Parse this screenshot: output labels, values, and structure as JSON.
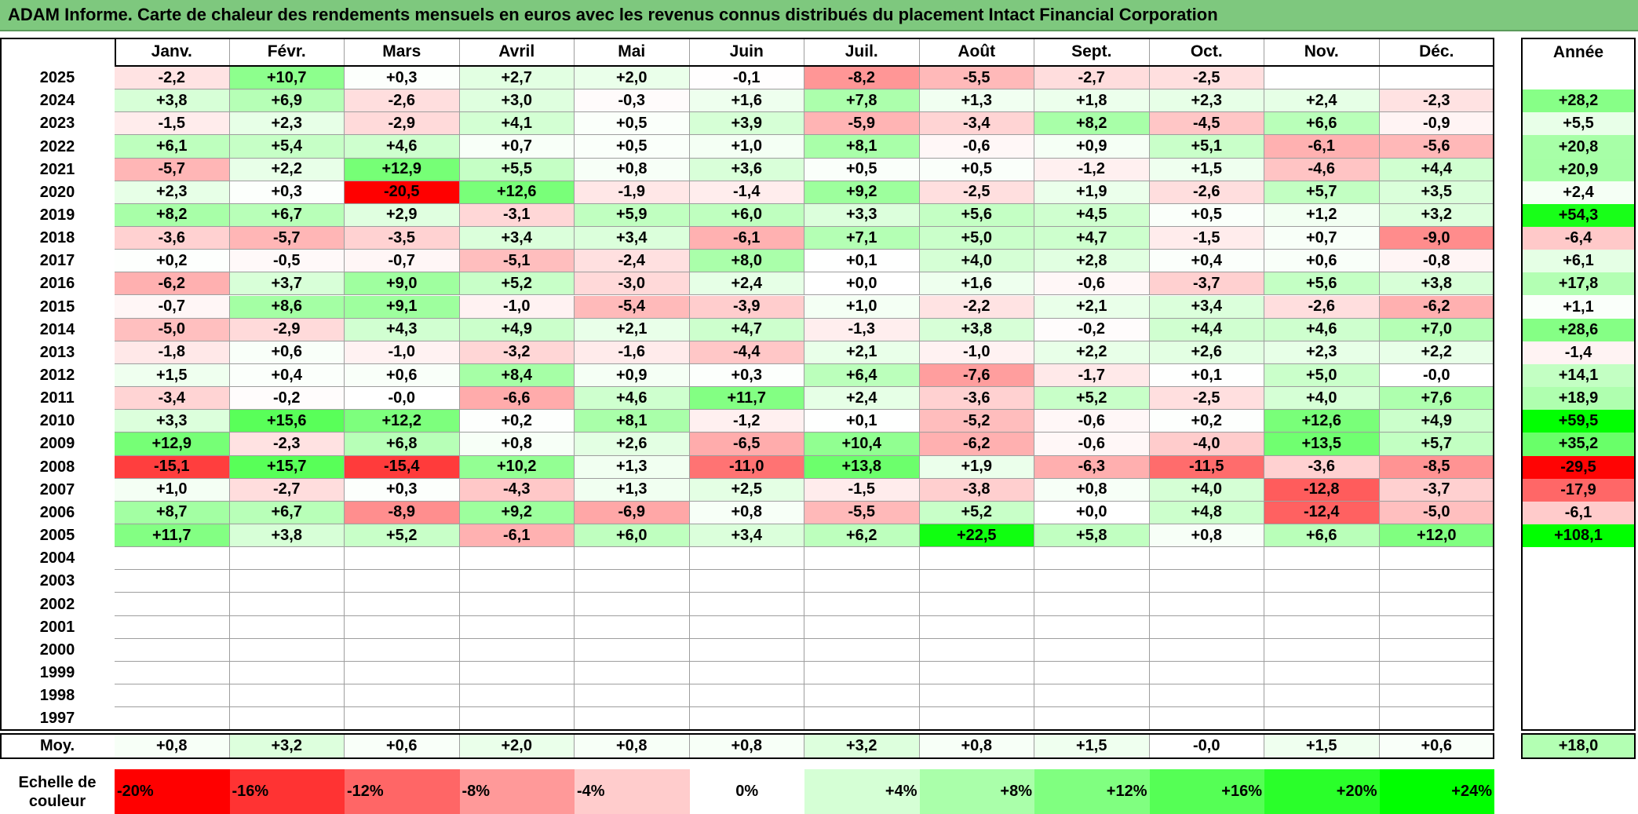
{
  "title": "ADAM Informe. Carte de chaleur des rendements mensuels en euros avec les revenus connus distribués du placement Intact Financial Corporation",
  "colors": {
    "title_bg": "#7ec87e",
    "negative_max": "#ff0000",
    "positive_max": "#00ff00",
    "neutral": "#ffffff"
  },
  "chart_data": {
    "type": "heatmap",
    "months": [
      "Janv.",
      "Févr.",
      "Mars",
      "Avril",
      "Mai",
      "Juin",
      "Juil.",
      "Août",
      "Sept.",
      "Oct.",
      "Nov.",
      "Déc."
    ],
    "annual_header": "Année",
    "rows": [
      {
        "year": "2025",
        "values": [
          "-2,2",
          "+10,7",
          "+0,3",
          "+2,7",
          "+2,0",
          "-0,1",
          "-8,2",
          "-5,5",
          "-2,7",
          "-2,5",
          "",
          ""
        ],
        "annual": ""
      },
      {
        "year": "2024",
        "values": [
          "+3,8",
          "+6,9",
          "-2,6",
          "+3,0",
          "-0,3",
          "+1,6",
          "+7,8",
          "+1,3",
          "+1,8",
          "+2,3",
          "+2,4",
          "-2,3"
        ],
        "annual": "+28,2"
      },
      {
        "year": "2023",
        "values": [
          "-1,5",
          "+2,3",
          "-2,9",
          "+4,1",
          "+0,5",
          "+3,9",
          "-5,9",
          "-3,4",
          "+8,2",
          "-4,5",
          "+6,6",
          "-0,9"
        ],
        "annual": "+5,5"
      },
      {
        "year": "2022",
        "values": [
          "+6,1",
          "+5,4",
          "+4,6",
          "+0,7",
          "+0,5",
          "+1,0",
          "+8,1",
          "-0,6",
          "+0,9",
          "+5,1",
          "-6,1",
          "-5,6"
        ],
        "annual": "+20,8"
      },
      {
        "year": "2021",
        "values": [
          "-5,7",
          "+2,2",
          "+12,9",
          "+5,5",
          "+0,8",
          "+3,6",
          "+0,5",
          "+0,5",
          "-1,2",
          "+1,5",
          "-4,6",
          "+4,4"
        ],
        "annual": "+20,9"
      },
      {
        "year": "2020",
        "values": [
          "+2,3",
          "+0,3",
          "-20,5",
          "+12,6",
          "-1,9",
          "-1,4",
          "+9,2",
          "-2,5",
          "+1,9",
          "-2,6",
          "+5,7",
          "+3,5"
        ],
        "annual": "+2,4"
      },
      {
        "year": "2019",
        "values": [
          "+8,2",
          "+6,7",
          "+2,9",
          "-3,1",
          "+5,9",
          "+6,0",
          "+3,3",
          "+5,6",
          "+4,5",
          "+0,5",
          "+1,2",
          "+3,2"
        ],
        "annual": "+54,3"
      },
      {
        "year": "2018",
        "values": [
          "-3,6",
          "-5,7",
          "-3,5",
          "+3,4",
          "+3,4",
          "-6,1",
          "+7,1",
          "+5,0",
          "+4,7",
          "-1,5",
          "+0,7",
          "-9,0"
        ],
        "annual": "-6,4"
      },
      {
        "year": "2017",
        "values": [
          "+0,2",
          "-0,5",
          "-0,7",
          "-5,1",
          "-2,4",
          "+8,0",
          "+0,1",
          "+4,0",
          "+2,8",
          "+0,4",
          "+0,6",
          "-0,8"
        ],
        "annual": "+6,1"
      },
      {
        "year": "2016",
        "values": [
          "-6,2",
          "+3,7",
          "+9,0",
          "+5,2",
          "-3,0",
          "+2,4",
          "+0,0",
          "+1,6",
          "-0,6",
          "-3,7",
          "+5,6",
          "+3,8"
        ],
        "annual": "+17,8"
      },
      {
        "year": "2015",
        "values": [
          "-0,7",
          "+8,6",
          "+9,1",
          "-1,0",
          "-5,4",
          "-3,9",
          "+1,0",
          "-2,2",
          "+2,1",
          "+3,4",
          "-2,6",
          "-6,2"
        ],
        "annual": "+1,1"
      },
      {
        "year": "2014",
        "values": [
          "-5,0",
          "-2,9",
          "+4,3",
          "+4,9",
          "+2,1",
          "+4,7",
          "-1,3",
          "+3,8",
          "-0,2",
          "+4,4",
          "+4,6",
          "+7,0"
        ],
        "annual": "+28,6"
      },
      {
        "year": "2013",
        "values": [
          "-1,8",
          "+0,6",
          "-1,0",
          "-3,2",
          "-1,6",
          "-4,4",
          "+2,1",
          "-1,0",
          "+2,2",
          "+2,6",
          "+2,3",
          "+2,2"
        ],
        "annual": "-1,4"
      },
      {
        "year": "2012",
        "values": [
          "+1,5",
          "+0,4",
          "+0,6",
          "+8,4",
          "+0,9",
          "+0,3",
          "+6,4",
          "-7,6",
          "-1,7",
          "+0,1",
          "+5,0",
          "-0,0"
        ],
        "annual": "+14,1"
      },
      {
        "year": "2011",
        "values": [
          "-3,4",
          "-0,2",
          "-0,0",
          "-6,6",
          "+4,6",
          "+11,7",
          "+2,4",
          "-3,6",
          "+5,2",
          "-2,5",
          "+4,0",
          "+7,6"
        ],
        "annual": "+18,9"
      },
      {
        "year": "2010",
        "values": [
          "+3,3",
          "+15,6",
          "+12,2",
          "+0,2",
          "+8,1",
          "-1,2",
          "+0,1",
          "-5,2",
          "-0,6",
          "+0,2",
          "+12,6",
          "+4,9"
        ],
        "annual": "+59,5"
      },
      {
        "year": "2009",
        "values": [
          "+12,9",
          "-2,3",
          "+6,8",
          "+0,8",
          "+2,6",
          "-6,5",
          "+10,4",
          "-6,2",
          "-0,6",
          "-4,0",
          "+13,5",
          "+5,7"
        ],
        "annual": "+35,2"
      },
      {
        "year": "2008",
        "values": [
          "-15,1",
          "+15,7",
          "-15,4",
          "+10,2",
          "+1,3",
          "-11,0",
          "+13,8",
          "+1,9",
          "-6,3",
          "-11,5",
          "-3,6",
          "-8,5"
        ],
        "annual": "-29,5"
      },
      {
        "year": "2007",
        "values": [
          "+1,0",
          "-2,7",
          "+0,3",
          "-4,3",
          "+1,3",
          "+2,5",
          "-1,5",
          "-3,8",
          "+0,8",
          "+4,0",
          "-12,8",
          "-3,7"
        ],
        "annual": "-17,9"
      },
      {
        "year": "2006",
        "values": [
          "+8,7",
          "+6,7",
          "-8,9",
          "+9,2",
          "-6,9",
          "+0,8",
          "-5,5",
          "+5,2",
          "+0,0",
          "+4,8",
          "-12,4",
          "-5,0"
        ],
        "annual": "-6,1"
      },
      {
        "year": "2005",
        "values": [
          "+11,7",
          "+3,8",
          "+5,2",
          "-6,1",
          "+6,0",
          "+3,4",
          "+6,2",
          "+22,5",
          "+5,8",
          "+0,8",
          "+6,6",
          "+12,0"
        ],
        "annual": "+108,1"
      },
      {
        "year": "2004",
        "values": [
          "",
          "",
          "",
          "",
          "",
          "",
          "",
          "",
          "",
          "",
          "",
          ""
        ],
        "annual": ""
      },
      {
        "year": "2003",
        "values": [
          "",
          "",
          "",
          "",
          "",
          "",
          "",
          "",
          "",
          "",
          "",
          ""
        ],
        "annual": ""
      },
      {
        "year": "2002",
        "values": [
          "",
          "",
          "",
          "",
          "",
          "",
          "",
          "",
          "",
          "",
          "",
          ""
        ],
        "annual": ""
      },
      {
        "year": "2001",
        "values": [
          "",
          "",
          "",
          "",
          "",
          "",
          "",
          "",
          "",
          "",
          "",
          ""
        ],
        "annual": ""
      },
      {
        "year": "2000",
        "values": [
          "",
          "",
          "",
          "",
          "",
          "",
          "",
          "",
          "",
          "",
          "",
          ""
        ],
        "annual": ""
      },
      {
        "year": "1999",
        "values": [
          "",
          "",
          "",
          "",
          "",
          "",
          "",
          "",
          "",
          "",
          "",
          ""
        ],
        "annual": ""
      },
      {
        "year": "1998",
        "values": [
          "",
          "",
          "",
          "",
          "",
          "",
          "",
          "",
          "",
          "",
          "",
          ""
        ],
        "annual": ""
      },
      {
        "year": "1997",
        "values": [
          "",
          "",
          "",
          "",
          "",
          "",
          "",
          "",
          "",
          "",
          "",
          ""
        ],
        "annual": ""
      }
    ],
    "average": {
      "label": "Moy.",
      "values": [
        "+0,8",
        "+3,2",
        "+0,6",
        "+2,0",
        "+0,8",
        "+0,8",
        "+3,2",
        "+0,8",
        "+1,5",
        "-0,0",
        "+1,5",
        "+0,6"
      ],
      "annual": "+18,0"
    },
    "color_scale": {
      "label": "Echelle de couleur",
      "labels": [
        "-20%",
        "-16%",
        "-12%",
        "-8%",
        "-4%",
        "0%",
        "+4%",
        "+8%",
        "+12%",
        "+16%",
        "+20%",
        "+24%"
      ],
      "values": [
        -20,
        -16,
        -12,
        -8,
        -4,
        0,
        4,
        8,
        12,
        16,
        20,
        24
      ]
    }
  }
}
